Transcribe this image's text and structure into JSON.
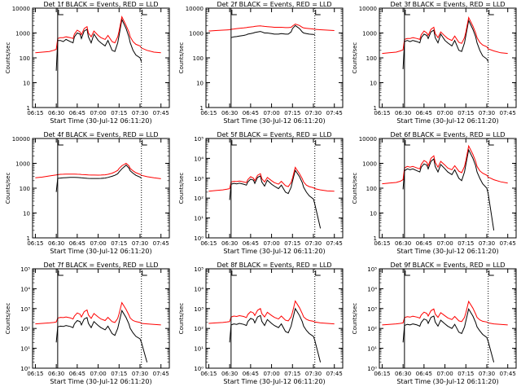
{
  "chart_data": {
    "type": "line",
    "yscale": "log",
    "xlabel_prefix": "Start Time",
    "start_time": "(30-Jul-12 06:11:20)",
    "ylabel": "Counts/sec",
    "xlim": [
      "06:15",
      "07:52"
    ],
    "x_ticks": [
      "06:15",
      "06:30",
      "06:45",
      "07:00",
      "07:15",
      "07:30",
      "07:45"
    ],
    "x_tick_values": [
      0,
      15,
      30,
      45,
      60,
      75,
      90
    ],
    "markers": [
      {
        "x": 16,
        "style": "solid"
      },
      {
        "x": 76,
        "style": "dotted"
      }
    ],
    "x": [
      0,
      5,
      10,
      13,
      15,
      16,
      18,
      20,
      22,
      25,
      27,
      28,
      30,
      32,
      33,
      35,
      37,
      38,
      40,
      42,
      45,
      47,
      50,
      52,
      55,
      57,
      59,
      60,
      62,
      65,
      67,
      68,
      70,
      72,
      75,
      76,
      80,
      85,
      90
    ],
    "colors": {
      "events": "#000000",
      "lld": "#ff0000",
      "axes": "#000000"
    },
    "panels": [
      {
        "title": "Det 1f BLACK = Events, RED = LLD",
        "ylim": [
          1,
          10000
        ],
        "y_ticks": [
          "1",
          "10",
          "100",
          "1000",
          "10000"
        ],
        "series": [
          {
            "name": "Events",
            "color": "#000000",
            "values": [
              null,
              null,
              null,
              null,
              30,
              500,
              500,
              450,
              550,
              450,
              400,
              700,
              1000,
              900,
              600,
              1200,
              1400,
              700,
              400,
              900,
              500,
              400,
              300,
              500,
              200,
              180,
              400,
              800,
              3500,
              1500,
              700,
              400,
              200,
              130,
              100,
              70,
              null,
              null,
              null
            ]
          },
          {
            "name": "LLD",
            "color": "#ff0000",
            "values": [
              160,
              170,
              180,
              200,
              220,
              600,
              650,
              650,
              700,
              650,
              600,
              900,
              1300,
              1100,
              850,
              1500,
              1800,
              1000,
              700,
              1200,
              800,
              650,
              550,
              800,
              450,
              400,
              700,
              1200,
              4500,
              2000,
              1100,
              700,
              450,
              350,
              300,
              250,
              200,
              170,
              160
            ]
          }
        ]
      },
      {
        "title": "Det 2f BLACK = Events, RED = LLD",
        "ylim": [
          1,
          10000
        ],
        "y_ticks": [
          "1",
          "10",
          "100",
          "1000",
          "10000"
        ],
        "series": [
          {
            "name": "Events",
            "color": "#000000",
            "values": [
              null,
              null,
              null,
              null,
              null,
              650,
              700,
              720,
              750,
              800,
              850,
              900,
              950,
              1000,
              1050,
              1100,
              1150,
              1100,
              1000,
              1000,
              950,
              900,
              900,
              950,
              900,
              900,
              1100,
              1500,
              2000,
              1500,
              1100,
              1000,
              950,
              900,
              880,
              850,
              null,
              null,
              null
            ]
          },
          {
            "name": "LLD",
            "color": "#ff0000",
            "values": [
              1200,
              1250,
              1300,
              1330,
              1350,
              1400,
              1450,
              1500,
              1550,
              1600,
              1650,
              1700,
              1750,
              1800,
              1850,
              1900,
              1950,
              1900,
              1850,
              1800,
              1750,
              1700,
              1700,
              1700,
              1650,
              1650,
              1700,
              1900,
              2300,
              2000,
              1700,
              1600,
              1550,
              1500,
              1450,
              1400,
              1350,
              1300,
              1250
            ]
          }
        ]
      },
      {
        "title": "Det 3f BLACK = Events, RED = LLD",
        "ylim": [
          1,
          10000
        ],
        "y_ticks": [
          "1",
          "10",
          "100",
          "1000",
          "10000"
        ],
        "series": [
          {
            "name": "Events",
            "color": "#000000",
            "values": [
              null,
              null,
              null,
              null,
              35,
              450,
              500,
              450,
              500,
              450,
              400,
              650,
              900,
              800,
              600,
              1100,
              1300,
              650,
              400,
              900,
              500,
              400,
              300,
              500,
              200,
              180,
              400,
              800,
              3200,
              1400,
              700,
              400,
              200,
              120,
              90,
              70,
              null,
              null,
              null
            ]
          },
          {
            "name": "LLD",
            "color": "#ff0000",
            "values": [
              150,
              160,
              170,
              190,
              210,
              550,
              600,
              600,
              650,
              600,
              550,
              850,
              1200,
              1000,
              800,
              1400,
              1700,
              950,
              650,
              1100,
              750,
              600,
              500,
              750,
              420,
              380,
              650,
              1100,
              4200,
              1900,
              1000,
              650,
              420,
              330,
              280,
              230,
              190,
              160,
              150
            ]
          }
        ]
      },
      {
        "title": "Det 4f BLACK = Events, RED = LLD",
        "ylim": [
          1,
          10000
        ],
        "y_ticks": [
          "1",
          "10",
          "100",
          "1000",
          "10000"
        ],
        "series": [
          {
            "name": "Events",
            "color": "#000000",
            "values": [
              null,
              null,
              null,
              null,
              70,
              250,
              255,
              260,
              265,
              270,
              270,
              270,
              268,
              265,
              260,
              255,
              250,
              248,
              245,
              245,
              245,
              248,
              255,
              270,
              300,
              330,
              380,
              450,
              600,
              850,
              650,
              500,
              400,
              330,
              280,
              250,
              null,
              null,
              null
            ]
          },
          {
            "name": "LLD",
            "color": "#ff0000",
            "values": [
              260,
              280,
              310,
              330,
              340,
              350,
              360,
              365,
              370,
              370,
              370,
              368,
              365,
              360,
              355,
              350,
              345,
              340,
              338,
              336,
              335,
              338,
              345,
              360,
              400,
              450,
              520,
              620,
              800,
              1000,
              800,
              620,
              500,
              420,
              360,
              330,
              290,
              260,
              240
            ]
          }
        ]
      },
      {
        "title": "Det 5f BLACK = Events, RED = LLD",
        "ylim": [
          1,
          100000
        ],
        "y_ticks": [
          "10⁰",
          "10¹",
          "10²",
          "10³",
          "10⁴",
          "10⁵"
        ],
        "series": [
          {
            "name": "Events",
            "color": "#000000",
            "values": [
              null,
              null,
              null,
              null,
              80,
              500,
              550,
              520,
              560,
              500,
              450,
              650,
              900,
              800,
              550,
              1100,
              1300,
              650,
              400,
              800,
              500,
              400,
              300,
              450,
              200,
              170,
              350,
              700,
              2500,
              1200,
              600,
              350,
              200,
              130,
              90,
              50,
              3,
              null,
              null
            ]
          },
          {
            "name": "LLD",
            "color": "#ff0000",
            "values": [
              220,
              240,
              260,
              280,
              300,
              650,
              700,
              680,
              720,
              650,
              600,
              850,
              1200,
              1000,
              750,
              1400,
              1700,
              950,
              650,
              1100,
              750,
              600,
              500,
              700,
              420,
              380,
              600,
              1000,
              3500,
              1700,
              950,
              650,
              450,
              380,
              330,
              300,
              260,
              230,
              220
            ]
          }
        ]
      },
      {
        "title": "Det 6f BLACK = Events, RED = LLD",
        "ylim": [
          1,
          10000
        ],
        "y_ticks": [
          "1",
          "10",
          "100",
          "1000",
          "10000"
        ],
        "series": [
          {
            "name": "Events",
            "color": "#000000",
            "values": [
              null,
              null,
              null,
              null,
              90,
              500,
              600,
              550,
              600,
              500,
              450,
              700,
              950,
              850,
              600,
              1200,
              1500,
              750,
              450,
              900,
              600,
              450,
              350,
              550,
              250,
              200,
              450,
              900,
              3500,
              1600,
              800,
              450,
              250,
              150,
              100,
              60,
              2,
              null,
              null
            ]
          },
          {
            "name": "LLD",
            "color": "#ff0000",
            "values": [
              150,
              160,
              170,
              190,
              220,
              650,
              750,
              700,
              750,
              650,
              600,
              900,
              1300,
              1100,
              800,
              1600,
              2000,
              1100,
              700,
              1200,
              850,
              650,
              550,
              800,
              480,
              420,
              750,
              1300,
              5000,
              2300,
              1200,
              750,
              500,
              400,
              330,
              280,
              220,
              180,
              160
            ]
          }
        ]
      },
      {
        "title": "Det 7f BLACK = Events, RED = LLD",
        "ylim": [
          1,
          100000
        ],
        "y_ticks": [
          "10⁰",
          "10¹",
          "10²",
          "10³",
          "10⁴",
          "10⁵"
        ],
        "series": [
          {
            "name": "Events",
            "color": "#000000",
            "values": [
              null,
              null,
              null,
              null,
              20,
              120,
              130,
              125,
              140,
              125,
              110,
              170,
              250,
              220,
              150,
              300,
              350,
              180,
              110,
              220,
              140,
              110,
              85,
              130,
              55,
              45,
              100,
              200,
              800,
              350,
              170,
              100,
              60,
              40,
              30,
              20,
              2,
              null,
              null
            ]
          },
          {
            "name": "LLD",
            "color": "#ff0000",
            "values": [
              170,
              180,
              190,
              200,
              210,
              330,
              360,
              350,
              380,
              340,
              300,
              420,
              600,
              520,
              380,
              700,
              850,
              480,
              320,
              560,
              380,
              300,
              250,
              360,
              220,
              200,
              320,
              550,
              2000,
              900,
              480,
              330,
              250,
              220,
              200,
              180,
              170,
              160,
              150
            ]
          }
        ]
      },
      {
        "title": "Det 8f BLACK = Events, RED = LLD",
        "ylim": [
          1,
          100000
        ],
        "y_ticks": [
          "10⁰",
          "10¹",
          "10²",
          "10³",
          "10⁴",
          "10⁵"
        ],
        "series": [
          {
            "name": "Events",
            "color": "#000000",
            "values": [
              null,
              null,
              null,
              null,
              20,
              150,
              170,
              160,
              180,
              160,
              140,
              220,
              320,
              280,
              190,
              380,
              450,
              230,
              140,
              280,
              180,
              140,
              110,
              170,
              70,
              60,
              130,
              260,
              1000,
              450,
              220,
              130,
              80,
              55,
              40,
              25,
              2,
              null,
              null
            ]
          },
          {
            "name": "LLD",
            "color": "#ff0000",
            "values": [
              180,
              190,
              200,
              210,
              220,
              380,
              420,
              400,
              440,
              400,
              350,
              500,
              700,
              600,
              450,
              820,
              1000,
              560,
              380,
              650,
              450,
              360,
              300,
              420,
              260,
              240,
              380,
              650,
              2400,
              1100,
              560,
              380,
              290,
              250,
              230,
              210,
              190,
              180,
              170
            ]
          }
        ]
      },
      {
        "title": "Det 9f BLACK = Events, RED = LLD",
        "ylim": [
          1,
          100000
        ],
        "y_ticks": [
          "10⁰",
          "10¹",
          "10²",
          "10³",
          "10⁴",
          "10⁵"
        ],
        "series": [
          {
            "name": "Events",
            "color": "#000000",
            "values": [
              null,
              null,
              null,
              null,
              20,
              140,
              160,
              150,
              170,
              150,
              130,
              200,
              300,
              260,
              180,
              360,
              420,
              210,
              130,
              260,
              170,
              130,
              100,
              160,
              65,
              55,
              120,
              240,
              950,
              420,
              200,
              120,
              75,
              50,
              35,
              22,
              2,
              null,
              null
            ]
          },
          {
            "name": "LLD",
            "color": "#ff0000",
            "values": [
              150,
              160,
              170,
              180,
              190,
              350,
              390,
              370,
              410,
              370,
              330,
              470,
              660,
              570,
              420,
              780,
              950,
              530,
              360,
              620,
              430,
              340,
              280,
              400,
              240,
              220,
              360,
              620,
              2300,
              1050,
              530,
              360,
              270,
              230,
              210,
              190,
              170,
              160,
              150
            ]
          }
        ]
      }
    ]
  }
}
